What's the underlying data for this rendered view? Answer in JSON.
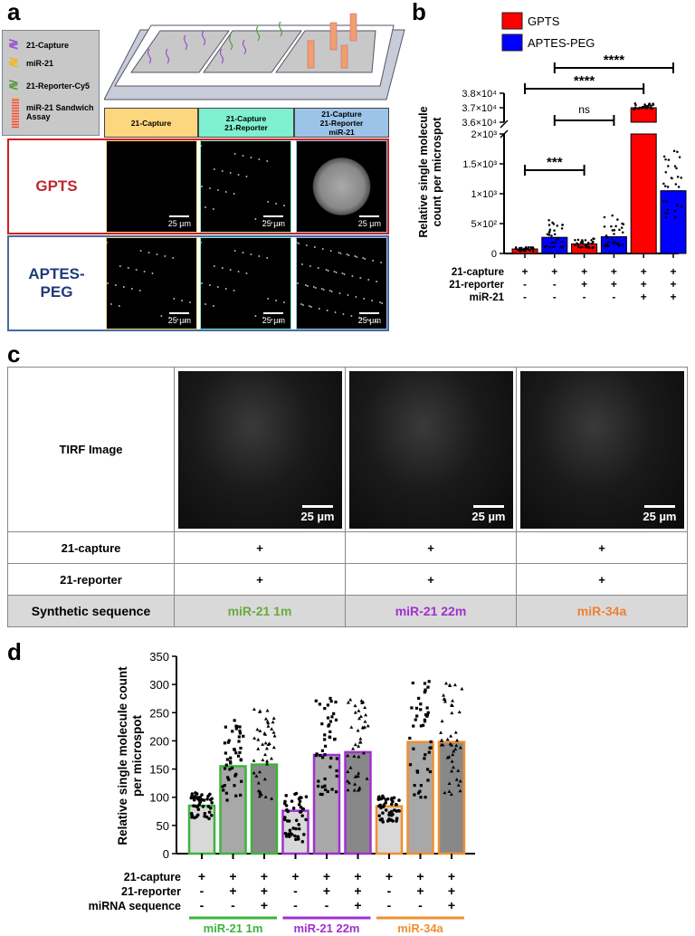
{
  "panel_labels": {
    "a": "a",
    "b": "b",
    "c": "c",
    "d": "d"
  },
  "panel_a": {
    "legend": [
      "21-Capture",
      "miR-21",
      "21-Reporter-Cy5",
      "miR-21 Sandwich Assay"
    ],
    "columns": [
      "21-Capture",
      "21-Capture\n21-Reporter",
      "21-Capture\n21-Reporter\nmiR-21"
    ],
    "column_colors": [
      "#fcd77f",
      "#7ff0d0",
      "#9cc4e8"
    ],
    "rows": [
      {
        "label": "GPTS",
        "color": "#c0282d"
      },
      {
        "label": "APTES-\nPEG",
        "color": "#1f3a78"
      }
    ],
    "scale_bar": "25 µm"
  },
  "chart_data": [
    {
      "type": "bar",
      "panel": "b",
      "legend": [
        {
          "name": "GPTS",
          "color": "#ff0000"
        },
        {
          "name": "APTES-PEG",
          "color": "#0000ff"
        }
      ],
      "legend_placement": "top",
      "ylabel": "Relative single molecule count per microspot",
      "y_axis_break": true,
      "ylim_lower": [
        0,
        2000
      ],
      "ylim_upper": [
        36000,
        38000
      ],
      "yticks_lower": [
        "0",
        "5×10²",
        "1×10³",
        "1.5×10³",
        "2×10³"
      ],
      "yticks_upper": [
        "3.6×10⁴",
        "3.7×10⁴",
        "3.8×10⁴"
      ],
      "bars": [
        {
          "series": "GPTS",
          "value": 75,
          "min": 40,
          "max": 110
        },
        {
          "series": "APTES-PEG",
          "value": 270,
          "min": 100,
          "max": 560
        },
        {
          "series": "GPTS",
          "value": 160,
          "min": 90,
          "max": 250
        },
        {
          "series": "APTES-PEG",
          "value": 280,
          "min": 120,
          "max": 640
        },
        {
          "series": "GPTS",
          "value": 37000,
          "min": 36900,
          "max": 37300
        },
        {
          "series": "APTES-PEG",
          "value": 1050,
          "min": 600,
          "max": 1800
        }
      ],
      "conditions": [
        {
          "label": "21-capture",
          "values": [
            "+",
            "+",
            "+",
            "+",
            "+",
            "+"
          ]
        },
        {
          "label": "21-reporter",
          "values": [
            "-",
            "-",
            "+",
            "+",
            "+",
            "+"
          ]
        },
        {
          "label": "miR-21",
          "values": [
            "-",
            "-",
            "-",
            "-",
            "+",
            "+"
          ]
        }
      ],
      "significance": [
        {
          "from": 1,
          "to": 3,
          "label": "***"
        },
        {
          "from": 2,
          "to": 4,
          "label": "ns"
        },
        {
          "from": 1,
          "to": 5,
          "label": "****"
        },
        {
          "from": 2,
          "to": 6,
          "label": "****"
        }
      ]
    },
    {
      "type": "bar",
      "panel": "d",
      "ylabel": "Relative single molecule count per microspot",
      "ylim": [
        0,
        350
      ],
      "yticks": [
        "0",
        "50",
        "100",
        "150",
        "200",
        "250",
        "300",
        "350"
      ],
      "groups": [
        {
          "name": "miR-21 1m",
          "color": "#3cb43c"
        },
        {
          "name": "miR-21 22m",
          "color": "#a030d0"
        },
        {
          "name": "miR-34a",
          "color": "#f09030"
        }
      ],
      "bars": [
        {
          "group": 0,
          "value": 85,
          "min": 62,
          "max": 108,
          "fill": "#d8d8d8",
          "marker": "circle"
        },
        {
          "group": 0,
          "value": 155,
          "min": 88,
          "max": 246,
          "fill": "#a8a8a8",
          "marker": "square"
        },
        {
          "group": 0,
          "value": 158,
          "min": 93,
          "max": 257,
          "fill": "#888888",
          "marker": "triangle"
        },
        {
          "group": 1,
          "value": 76,
          "min": 20,
          "max": 107,
          "fill": "#d8d8d8",
          "marker": "circle"
        },
        {
          "group": 1,
          "value": 175,
          "min": 104,
          "max": 284,
          "fill": "#a8a8a8",
          "marker": "square"
        },
        {
          "group": 1,
          "value": 180,
          "min": 112,
          "max": 278,
          "fill": "#888888",
          "marker": "triangle"
        },
        {
          "group": 2,
          "value": 84,
          "min": 56,
          "max": 103,
          "fill": "#d8d8d8",
          "marker": "circle"
        },
        {
          "group": 2,
          "value": 198,
          "min": 100,
          "max": 314,
          "fill": "#a8a8a8",
          "marker": "square"
        },
        {
          "group": 2,
          "value": 198,
          "min": 99,
          "max": 304,
          "fill": "#888888",
          "marker": "triangle"
        }
      ],
      "conditions": [
        {
          "label": "21-capture",
          "values": [
            "+",
            "+",
            "+",
            "+",
            "+",
            "+",
            "+",
            "+",
            "+"
          ]
        },
        {
          "label": "21-reporter",
          "values": [
            "-",
            "+",
            "+",
            "-",
            "+",
            "+",
            "-",
            "+",
            "+"
          ]
        },
        {
          "label": "miRNA sequence",
          "values": [
            "-",
            "-",
            "+",
            "-",
            "-",
            "+",
            "-",
            "-",
            "+"
          ]
        }
      ]
    }
  ],
  "panel_c": {
    "row_label": "TIRF Image",
    "scale_bar": "25 µm",
    "rows": [
      {
        "label": "21-capture",
        "values": [
          "+",
          "+",
          "+"
        ]
      },
      {
        "label": "21-reporter",
        "values": [
          "+",
          "+",
          "+"
        ]
      }
    ],
    "synthetic": {
      "label": "Synthetic sequence",
      "values": [
        {
          "text": "miR-21 1m",
          "color": "#6aaa3a"
        },
        {
          "text": "miR-21 22m",
          "color": "#a030d0"
        },
        {
          "text": "miR-34a",
          "color": "#f08030"
        }
      ]
    }
  }
}
